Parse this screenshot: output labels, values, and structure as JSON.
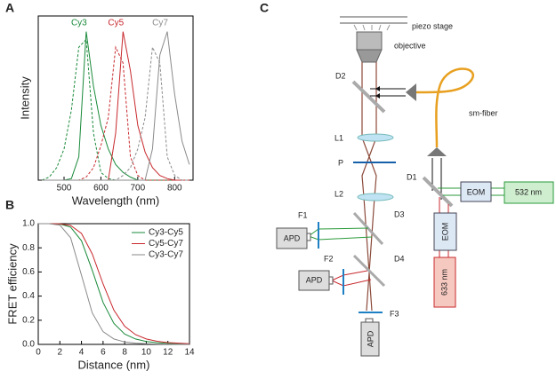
{
  "chart_data": [
    {
      "type": "line",
      "panel_label": "A",
      "xlabel": "Wavelength (nm)",
      "ylabel": "Intensity",
      "xlim": [
        430,
        850
      ],
      "ylim": [
        0,
        1.05
      ],
      "xticks": [
        500,
        600,
        700,
        800
      ],
      "x": [
        440,
        460,
        480,
        500,
        520,
        540,
        560,
        580,
        600,
        620,
        640,
        660,
        680,
        700,
        720,
        740,
        760,
        780,
        800,
        820,
        840
      ],
      "dyes": [
        {
          "name": "Cy3",
          "color": "#1a8a3a",
          "excitation": [
            0,
            0.02,
            0.08,
            0.2,
            0.45,
            0.85,
            0.9,
            0.3,
            0.05,
            0.01,
            0,
            0,
            0,
            0,
            0,
            0,
            0,
            0,
            0,
            0,
            0
          ],
          "emission": [
            0,
            0,
            0,
            0,
            0.01,
            0.15,
            0.95,
            0.6,
            0.35,
            0.2,
            0.1,
            0.05,
            0.02,
            0,
            0,
            0,
            0,
            0,
            0,
            0,
            0
          ]
        },
        {
          "name": "Cy5",
          "color": "#c8282d",
          "excitation": [
            0,
            0,
            0,
            0,
            0,
            0,
            0.02,
            0.08,
            0.22,
            0.4,
            0.85,
            0.75,
            0.15,
            0.03,
            0,
            0,
            0,
            0,
            0,
            0,
            0
          ],
          "emission": [
            0,
            0,
            0,
            0,
            0,
            0,
            0,
            0,
            0,
            0,
            0.3,
            0.95,
            0.7,
            0.35,
            0.18,
            0.08,
            0.03,
            0.01,
            0,
            0,
            0
          ]
        },
        {
          "name": "Cy7",
          "color": "#8a8a8a",
          "excitation": [
            0,
            0,
            0,
            0,
            0,
            0,
            0,
            0,
            0,
            0,
            0,
            0.03,
            0.08,
            0.2,
            0.4,
            0.85,
            0.75,
            0.15,
            0.03,
            0,
            0
          ],
          "emission": [
            0,
            0,
            0,
            0,
            0,
            0,
            0,
            0,
            0,
            0,
            0,
            0,
            0,
            0,
            0,
            0.2,
            0.8,
            0.95,
            0.55,
            0.25,
            0.1
          ]
        }
      ]
    },
    {
      "type": "line",
      "panel_label": "B",
      "xlabel": "Distance (nm)",
      "ylabel": "FRET efficiency",
      "xlim": [
        0,
        14
      ],
      "ylim": [
        0,
        1
      ],
      "xticks": [
        0,
        2,
        4,
        6,
        8,
        10,
        12,
        14
      ],
      "yticks": [
        {
          "value": 0,
          "label": "0.0"
        },
        {
          "value": 0.2,
          "label": "0.2"
        },
        {
          "value": 0.4,
          "label": "0.4"
        },
        {
          "value": 0.6,
          "label": "0.6"
        },
        {
          "value": 0.8,
          "label": "0.8"
        },
        {
          "value": 1,
          "label": "1.0"
        }
      ],
      "x": [
        0,
        1,
        2,
        3,
        4,
        5,
        6,
        7,
        8,
        9,
        10,
        11,
        12,
        13,
        14
      ],
      "series": [
        {
          "name": "Cy3-Cy5",
          "color": "#1a8a3a",
          "values": [
            1,
            1,
            0.997,
            0.971,
            0.858,
            0.613,
            0.347,
            0.174,
            0.086,
            0.045,
            0.024,
            0.014,
            0.008,
            0.005,
            0.003
          ]
        },
        {
          "name": "Cy5-Cy7",
          "color": "#c8282d",
          "values": [
            1,
            1,
            0.999,
            0.985,
            0.919,
            0.749,
            0.5,
            0.284,
            0.151,
            0.081,
            0.045,
            0.026,
            0.015,
            0.01,
            0.006
          ]
        },
        {
          "name": "Cy3-Cy7",
          "color": "#8a8a8a",
          "values": [
            1,
            1,
            0.988,
            0.883,
            0.573,
            0.26,
            0.105,
            0.045,
            0.02,
            0.01,
            0.005,
            0.003,
            0.002,
            0.001,
            0.001
          ]
        }
      ]
    }
  ],
  "diagram": {
    "panel_label": "C",
    "labels": {
      "piezo_stage": "piezo stage",
      "objective": "objective",
      "d2": "D2",
      "sm_fiber": "sm-fiber",
      "l1": "L1",
      "p": "P",
      "l2": "L2",
      "d1": "D1",
      "eom_green": "EOM",
      "laser_532": "532 nm",
      "eom_red": "EOM",
      "laser_633": "633 nm",
      "f1": "F1",
      "d3": "D3",
      "apd_1": "APD",
      "f2": "F2",
      "d4": "D4",
      "apd_2": "APD",
      "f3": "F3",
      "apd_3": "APD"
    }
  }
}
